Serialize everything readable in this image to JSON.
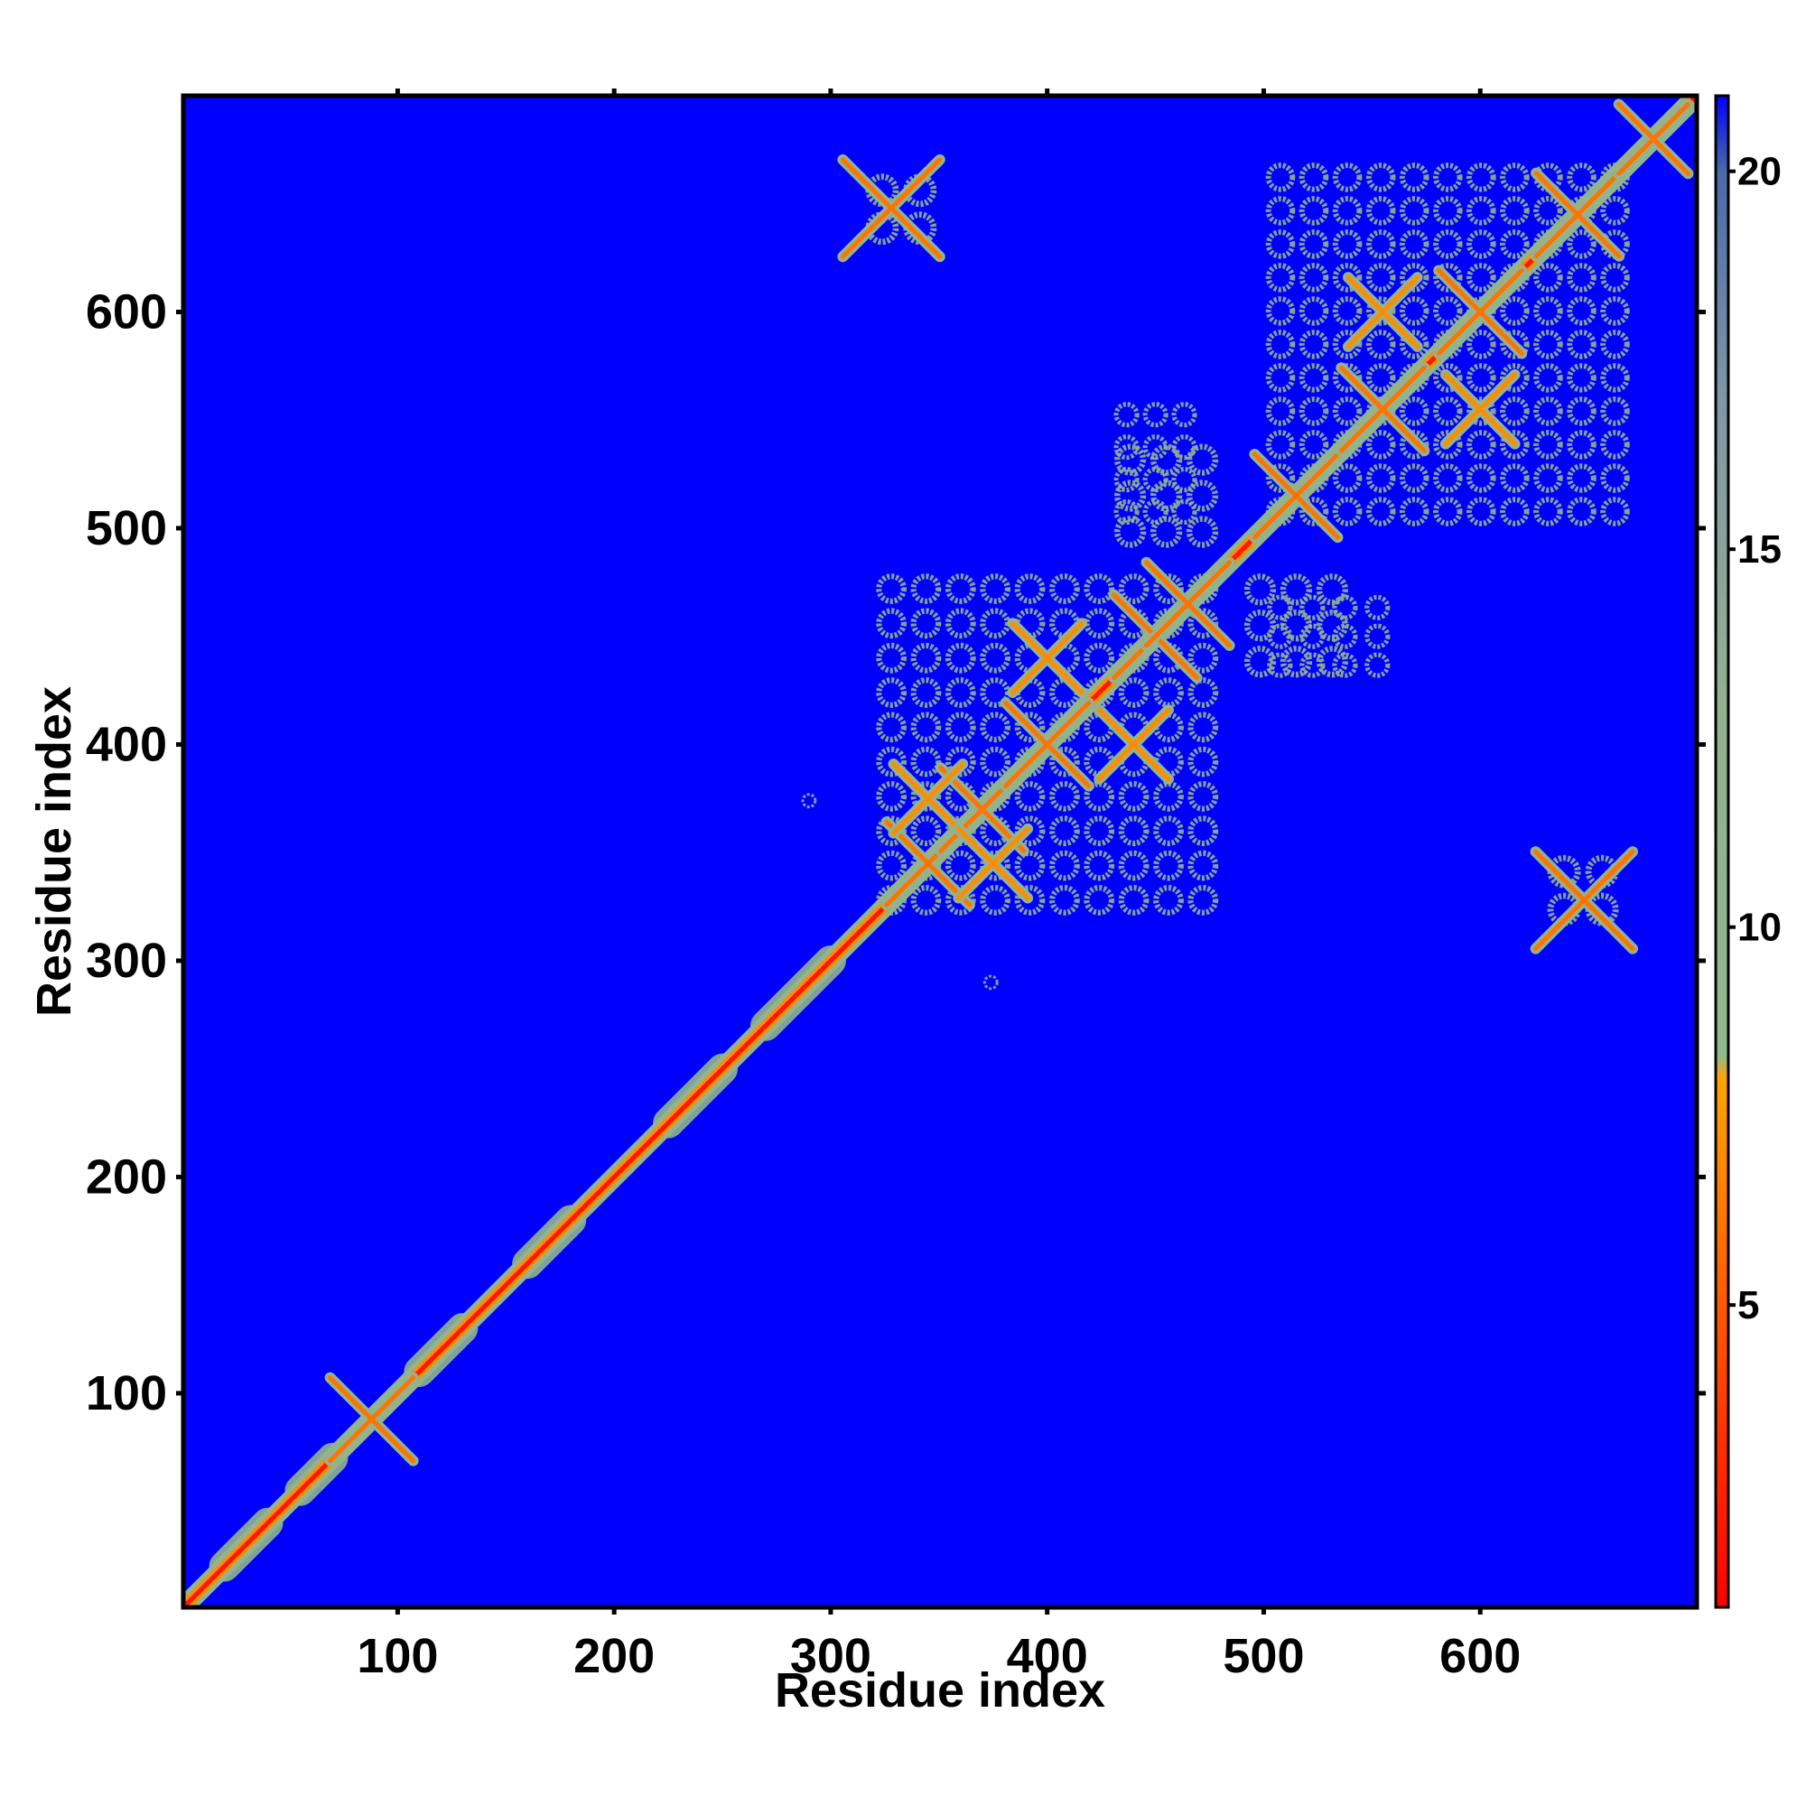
{
  "chart_data": {
    "type": "heatmap",
    "title": "",
    "xlabel": "Residue index",
    "ylabel": "Residue index",
    "xlim": [
      1,
      700
    ],
    "ylim": [
      1,
      700
    ],
    "xticks": [
      100,
      200,
      300,
      400,
      500,
      600
    ],
    "yticks": [
      100,
      200,
      300,
      400,
      500,
      600
    ],
    "colorbar": {
      "range": [
        1,
        21
      ],
      "ticks": [
        5,
        10,
        15,
        20
      ],
      "stops": [
        {
          "value": 1,
          "color": "#ff0000"
        },
        {
          "value": 5,
          "color": "#ff5a00"
        },
        {
          "value": 8,
          "color": "#ffa500"
        },
        {
          "value": 8.3,
          "color": "#8fb98f"
        },
        {
          "value": 13,
          "color": "#93b08f"
        },
        {
          "value": 17,
          "color": "#7f97a6"
        },
        {
          "value": 20,
          "color": "#4a6aa9"
        },
        {
          "value": 21,
          "color": "#0000ff"
        }
      ]
    },
    "background_value": 21,
    "background_color": "#0000ff",
    "diagonal": {
      "from": 1,
      "to": 700,
      "value": 2
    },
    "helix_segments": [
      [
        20,
        40
      ],
      [
        55,
        70
      ],
      [
        110,
        130
      ],
      [
        160,
        180
      ],
      [
        225,
        250
      ],
      [
        270,
        300
      ]
    ],
    "crossing_contacts": [
      {
        "x": 88,
        "y": 88,
        "value": 6,
        "size": 12
      },
      {
        "x": 328,
        "y": 648,
        "value": 6,
        "size": 14
      },
      {
        "x": 648,
        "y": 328,
        "value": 6,
        "size": 14
      },
      {
        "x": 345,
        "y": 345,
        "value": 6,
        "size": 12
      },
      {
        "x": 370,
        "y": 370,
        "value": 6,
        "size": 12
      },
      {
        "x": 400,
        "y": 400,
        "value": 6,
        "size": 12
      },
      {
        "x": 450,
        "y": 450,
        "value": 6,
        "size": 12
      },
      {
        "x": 465,
        "y": 465,
        "value": 6,
        "size": 12
      },
      {
        "x": 515,
        "y": 515,
        "value": 6,
        "size": 12
      },
      {
        "x": 555,
        "y": 555,
        "value": 6,
        "size": 12
      },
      {
        "x": 600,
        "y": 600,
        "value": 6,
        "size": 12
      },
      {
        "x": 645,
        "y": 645,
        "value": 6,
        "size": 12
      },
      {
        "x": 680,
        "y": 680,
        "value": 6,
        "size": 10
      },
      {
        "x": 345,
        "y": 375,
        "value": 7,
        "size": 10
      },
      {
        "x": 375,
        "y": 345,
        "value": 7,
        "size": 10
      },
      {
        "x": 400,
        "y": 440,
        "value": 7,
        "size": 10
      },
      {
        "x": 440,
        "y": 400,
        "value": 7,
        "size": 10
      },
      {
        "x": 555,
        "y": 600,
        "value": 7,
        "size": 10
      },
      {
        "x": 600,
        "y": 555,
        "value": 7,
        "size": 10
      }
    ],
    "contact_blocks": [
      {
        "x": [
          320,
          480
        ],
        "y": [
          320,
          480
        ],
        "value": 11
      },
      {
        "x": [
          430,
          480
        ],
        "y": [
          490,
          540
        ],
        "value": 12
      },
      {
        "x": [
          490,
          540
        ],
        "y": [
          430,
          480
        ],
        "value": 12
      },
      {
        "x": [
          500,
          670
        ],
        "y": [
          500,
          670
        ],
        "value": 11
      },
      {
        "x": [
          500,
          560
        ],
        "y": [
          430,
          470
        ],
        "value": 12
      },
      {
        "x": [
          430,
          470
        ],
        "y": [
          500,
          560
        ],
        "value": 12
      },
      {
        "x": [
          315,
          350
        ],
        "y": [
          630,
          665
        ],
        "value": 12
      },
      {
        "x": [
          630,
          665
        ],
        "y": [
          315,
          350
        ],
        "value": 12
      },
      {
        "x": [
          280,
          300
        ],
        "y": [
          370,
          378
        ],
        "value": 14
      },
      {
        "x": [
          370,
          378
        ],
        "y": [
          280,
          300
        ],
        "value": 14
      }
    ]
  }
}
